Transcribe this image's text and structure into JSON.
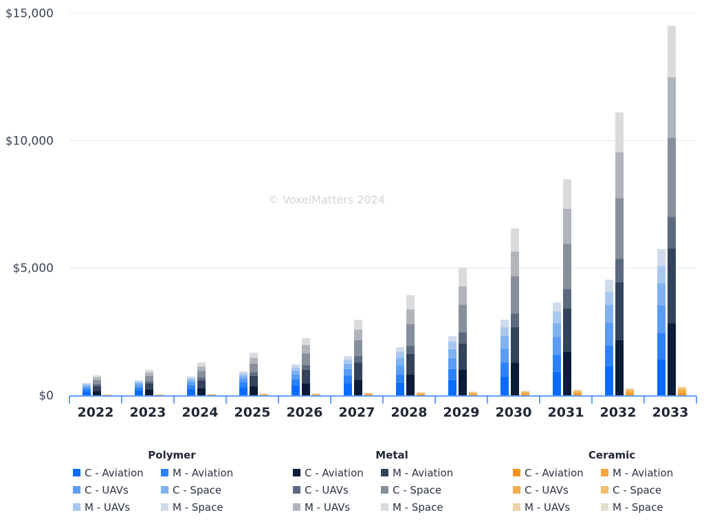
{
  "chart_data": {
    "type": "bar",
    "stacked": true,
    "grouped": true,
    "title": "",
    "xlabel": "",
    "ylabel": "",
    "ylim": [
      0,
      15000
    ],
    "yticks": [
      0,
      5000,
      10000,
      15000
    ],
    "ytick_labels": [
      "$0",
      "$5,000",
      "$10,000",
      "$15,000"
    ],
    "grid": true,
    "watermark": "© VoxelMatters 2024",
    "categories": [
      "2022",
      "2023",
      "2024",
      "2025",
      "2026",
      "2027",
      "2028",
      "2029",
      "2030",
      "2031",
      "2032",
      "2033"
    ],
    "groups": [
      {
        "name": "Polymer",
        "series": [
          {
            "name": "C - Aviation",
            "color": "#0a6cff",
            "values": [
              160,
              200,
              250,
              320,
              400,
              480,
              490,
              600,
              730,
              920,
              1150,
              1420
            ]
          },
          {
            "name": "M - Aviation",
            "color": "#2d82fb",
            "values": [
              100,
              120,
              150,
              190,
              240,
              300,
              320,
              430,
              570,
              670,
              810,
              1020
            ]
          },
          {
            "name": "C - UAVs",
            "color": "#5a9df5",
            "values": [
              80,
              100,
              120,
              150,
              190,
              250,
              350,
              430,
              540,
              700,
              890,
              1100
            ]
          },
          {
            "name": "C - Space",
            "color": "#80b2f2",
            "values": [
              60,
              70,
              90,
              110,
              150,
              200,
              320,
              350,
              480,
              540,
              700,
              860
            ]
          },
          {
            "name": "M - UAVs",
            "color": "#a9c8ef",
            "values": [
              45,
              55,
              70,
              90,
              120,
              160,
              220,
              300,
              350,
              460,
              510,
              670
            ]
          },
          {
            "name": "M - Space",
            "color": "#cfdbec",
            "values": [
              35,
              45,
              60,
              80,
              110,
              140,
              190,
              210,
              300,
              350,
              480,
              670
            ]
          }
        ]
      },
      {
        "name": "Metal",
        "series": [
          {
            "name": "C - Aviation",
            "color": "#0c1c38",
            "values": [
              180,
              230,
              290,
              370,
              480,
              610,
              810,
              1020,
              1290,
              1700,
              2180,
              2830
            ]
          },
          {
            "name": "M - Aviation",
            "color": "#33435c",
            "values": [
              190,
              240,
              300,
              390,
              520,
              680,
              810,
              1020,
              1380,
              1720,
              2260,
              2940
            ]
          },
          {
            "name": "C - UAVs",
            "color": "#5b6a7f",
            "values": [
              70,
              90,
              110,
              140,
              190,
              250,
              320,
              430,
              540,
              750,
              920,
              1240
            ]
          },
          {
            "name": "C - Space",
            "color": "#878f9c",
            "values": [
              160,
              200,
              260,
              340,
              460,
              620,
              860,
              1080,
              1460,
              1780,
              2370,
              3100
            ]
          },
          {
            "name": "M - UAVs",
            "color": "#b0b4bb",
            "values": [
              110,
              140,
              180,
              230,
              320,
              420,
              570,
              730,
              970,
              1370,
              1810,
              2370
            ]
          },
          {
            "name": "M - Space",
            "color": "#dadbdc",
            "values": [
              80,
              100,
              150,
              200,
              270,
              380,
              560,
              730,
              910,
              1160,
              1560,
              2020
            ]
          }
        ]
      },
      {
        "name": "Ceramic",
        "series": [
          {
            "name": "C - Aviation",
            "color": "#f7931e",
            "values": [
              8,
              10,
              12,
              15,
              18,
              24,
              30,
              36,
              44,
              56,
              70,
              90
            ]
          },
          {
            "name": "M - Aviation",
            "color": "#f5a73d",
            "values": [
              8,
              10,
              12,
              15,
              18,
              24,
              30,
              36,
              44,
              56,
              70,
              90
            ]
          },
          {
            "name": "C - UAVs",
            "color": "#f4ae4f",
            "values": [
              6,
              7,
              9,
              11,
              14,
              18,
              22,
              27,
              33,
              42,
              52,
              65
            ]
          },
          {
            "name": "C - Space",
            "color": "#f2bd6a",
            "values": [
              5,
              6,
              7,
              9,
              11,
              14,
              17,
              20,
              25,
              30,
              38,
              45
            ]
          },
          {
            "name": "M - UAVs",
            "color": "#ecd3a5",
            "values": [
              4,
              5,
              6,
              7,
              9,
              11,
              13,
              15,
              18,
              22,
              27,
              30
            ]
          },
          {
            "name": "M - Space",
            "color": "#e3decb",
            "values": [
              3,
              4,
              5,
              6,
              7,
              9,
              10,
              12,
              14,
              16,
              18,
              20
            ]
          }
        ]
      }
    ],
    "legend_position": "bottom"
  }
}
